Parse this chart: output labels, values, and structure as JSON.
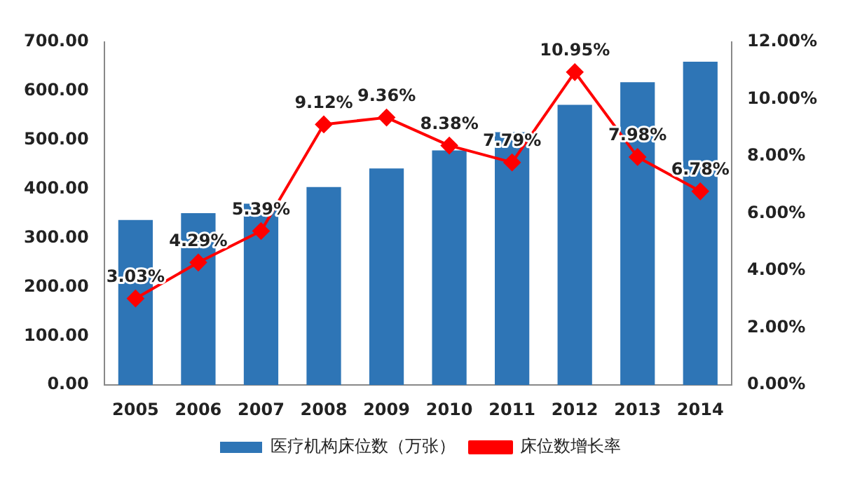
{
  "chart_data": {
    "type": "bar",
    "categories": [
      "2005",
      "2006",
      "2007",
      "2008",
      "2009",
      "2010",
      "2011",
      "2012",
      "2013",
      "2014"
    ],
    "series": [
      {
        "name": "医疗机构床位数（万张）",
        "color": "#2e75b6",
        "values": [
          337,
          351,
          370,
          404,
          442,
          479,
          516,
          572,
          618,
          660
        ]
      },
      {
        "name": "床位数增长率",
        "type": "line",
        "axis": "y2",
        "color": "#ff0000",
        "marker": "diamond",
        "values": [
          3.03,
          4.29,
          5.39,
          9.12,
          9.36,
          8.38,
          7.79,
          10.95,
          7.98,
          6.78
        ],
        "value_labels": [
          "3.03%",
          "4.29%",
          "5.39%",
          "9.12%",
          "9.36%",
          "8.38%",
          "7.79%",
          "10.95%",
          "7.98%",
          "6.78%"
        ]
      }
    ],
    "ylim": [
      0,
      700
    ],
    "yticks": [
      {
        "value": 0,
        "label": "0.00"
      },
      {
        "value": 100,
        "label": "100.00"
      },
      {
        "value": 200,
        "label": "200.00"
      },
      {
        "value": 300,
        "label": "300.00"
      },
      {
        "value": 400,
        "label": "400.00"
      },
      {
        "value": 500,
        "label": "500.00"
      },
      {
        "value": 600,
        "label": "600.00"
      },
      {
        "value": 700,
        "label": "700.00"
      }
    ],
    "y2lim": [
      0,
      12
    ],
    "y2ticks": [
      {
        "value": 0,
        "label": "0.00%"
      },
      {
        "value": 2,
        "label": "2.00%"
      },
      {
        "value": 4,
        "label": "4.00%"
      },
      {
        "value": 6,
        "label": "6.00%"
      },
      {
        "value": 8,
        "label": "8.00%"
      },
      {
        "value": 10,
        "label": "10.00%"
      },
      {
        "value": 12,
        "label": "12.00%"
      }
    ],
    "grid": false,
    "legend": "bottom"
  }
}
